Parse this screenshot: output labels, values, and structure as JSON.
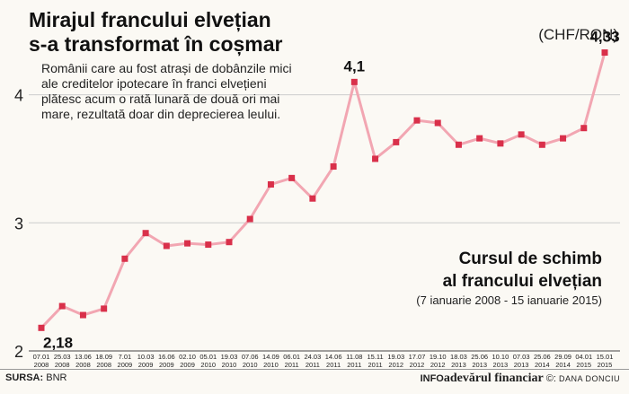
{
  "headline": {
    "line1": "Mirajul francului elvețian",
    "line2": "s-a transformat în coșmar"
  },
  "intro": {
    "lines": [
      "Românii care au fost atrași de dobânzile mici",
      "ale creditelor ipotecare în franci elvețieni",
      "plătesc acum o rată lunară de două ori mai",
      "mare, rezultată doar din deprecierea leului."
    ]
  },
  "unit": "(CHF/RON)",
  "chart_title": {
    "line1": "Cursul de schimb",
    "line2": "al francului elvețian",
    "period": "(7 ianuarie 2008 - 15 ianuarie 2015)"
  },
  "footer": {
    "source_label": "SURSA:",
    "source_value": "BNR",
    "brand_info": "INFO",
    "brand_name": "adevărul financiar",
    "brand_copyright": "©:",
    "author": "DANA DONCIU"
  },
  "colors": {
    "line": "#f2a6b2",
    "marker": "#d9304a",
    "gridline": "#cccccc",
    "text": "#222222",
    "background": "#fbf9f4"
  },
  "chart_data": {
    "type": "line",
    "x": [
      [
        "07.01",
        "2008"
      ],
      [
        "25.03",
        "2008"
      ],
      [
        "13.06",
        "2008"
      ],
      [
        "18.09",
        "2008"
      ],
      [
        "7.01",
        "2009"
      ],
      [
        "10.03",
        "2009"
      ],
      [
        "16.06",
        "2009"
      ],
      [
        "02.10",
        "2009"
      ],
      [
        "05.01",
        "2010"
      ],
      [
        "19.03",
        "2010"
      ],
      [
        "07.06",
        "2010"
      ],
      [
        "14.09",
        "2010"
      ],
      [
        "06.01",
        "2011"
      ],
      [
        "24.03",
        "2011"
      ],
      [
        "14.06",
        "2011"
      ],
      [
        "11.08",
        "2011"
      ],
      [
        "15.11",
        "2011"
      ],
      [
        "19.03",
        "2012"
      ],
      [
        "17.07",
        "2012"
      ],
      [
        "19.10",
        "2012"
      ],
      [
        "18.03",
        "2013"
      ],
      [
        "25.06",
        "2013"
      ],
      [
        "10.10",
        "2013"
      ],
      [
        "07.03",
        "2013"
      ],
      [
        "25.06",
        "2014"
      ],
      [
        "29.09",
        "2014"
      ],
      [
        "04.01",
        "2015"
      ],
      [
        "15.01",
        "2015"
      ]
    ],
    "values": [
      2.18,
      2.35,
      2.28,
      2.33,
      2.72,
      2.92,
      2.82,
      2.84,
      2.83,
      2.85,
      3.03,
      3.3,
      3.35,
      3.19,
      3.44,
      4.1,
      3.5,
      3.63,
      3.8,
      3.78,
      3.61,
      3.66,
      3.62,
      3.69,
      3.61,
      3.66,
      3.74,
      4.33
    ],
    "annotations": [
      {
        "index": 0,
        "label": "2,18"
      },
      {
        "index": 15,
        "label": "4,1"
      },
      {
        "index": 27,
        "label": "4,33"
      }
    ],
    "yticks": [
      2,
      3,
      4
    ],
    "ytick_labels": [
      "2",
      "3",
      "4"
    ],
    "ylim": [
      2,
      4.6
    ],
    "grid": true,
    "xlabel": "",
    "ylabel": ""
  }
}
